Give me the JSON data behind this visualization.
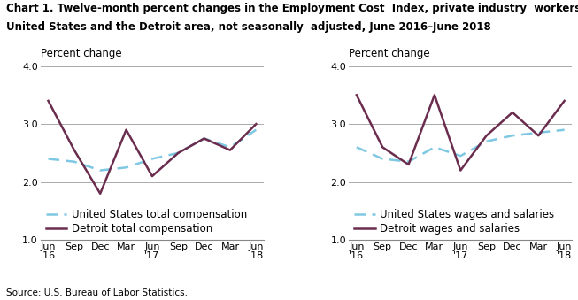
{
  "title_line1": "Chart 1. Twelve-month percent changes in the Employment Cost  Index, private industry  workers,",
  "title_line2": "United States and the Detroit area, not seasonally  adjusted, June 2016–June 2018",
  "source": "Source: U.S. Bureau of Labor Statistics.",
  "x_labels": [
    "Jun\n'16",
    "Sep",
    "Dec",
    "Mar",
    "Jun\n'17",
    "Sep",
    "Dec",
    "Mar",
    "Jun\n'18"
  ],
  "ylim": [
    1.0,
    4.0
  ],
  "yticks": [
    1.0,
    2.0,
    3.0,
    4.0
  ],
  "ylabel": "Percent change",
  "left": {
    "us_total": [
      2.4,
      2.35,
      2.2,
      2.25,
      2.4,
      2.5,
      2.75,
      2.6,
      2.9
    ],
    "detroit_total": [
      3.4,
      2.55,
      1.8,
      2.9,
      2.1,
      2.5,
      2.75,
      2.55,
      3.0
    ],
    "us_label": "United States total compensation",
    "detroit_label": "Detroit total compensation"
  },
  "right": {
    "us_wages": [
      2.6,
      2.4,
      2.35,
      2.6,
      2.45,
      2.7,
      2.8,
      2.85,
      2.9
    ],
    "detroit_wages": [
      3.5,
      2.6,
      2.3,
      3.5,
      2.2,
      2.8,
      3.2,
      2.8,
      3.4
    ],
    "us_label": "United States wages and salaries",
    "detroit_label": "Detroit wages and salaries"
  },
  "us_color": "#7ec8e3",
  "detroit_color": "#6b2d4e",
  "linewidth": 1.8,
  "grid_color": "#aaaaaa",
  "bg_color": "#ffffff",
  "title_fontsize": 8.5,
  "label_fontsize": 8.5,
  "tick_fontsize": 8.0,
  "legend_fontsize": 8.5
}
